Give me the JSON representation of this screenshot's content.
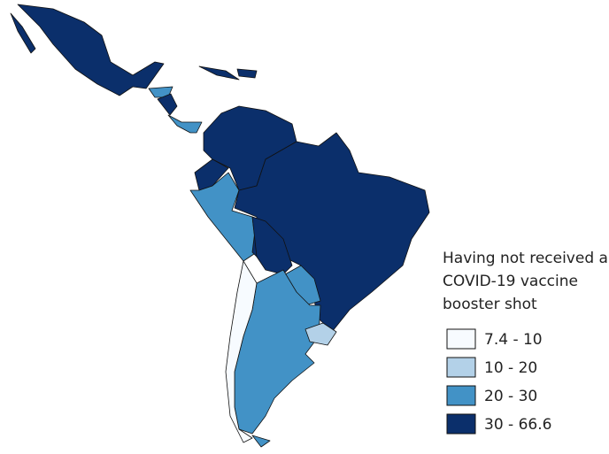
{
  "legend": {
    "title": [
      "Having not received a",
      "COVID-19 vaccine",
      "booster shot"
    ],
    "items": [
      {
        "label": "7.4 - 10",
        "color": "#f7fbff"
      },
      {
        "label": "10 - 20",
        "color": "#b3d1e8"
      },
      {
        "label": "20 - 30",
        "color": "#4292c6"
      },
      {
        "label": "30 - 66.6",
        "color": "#0b2f6b"
      }
    ]
  }
}
